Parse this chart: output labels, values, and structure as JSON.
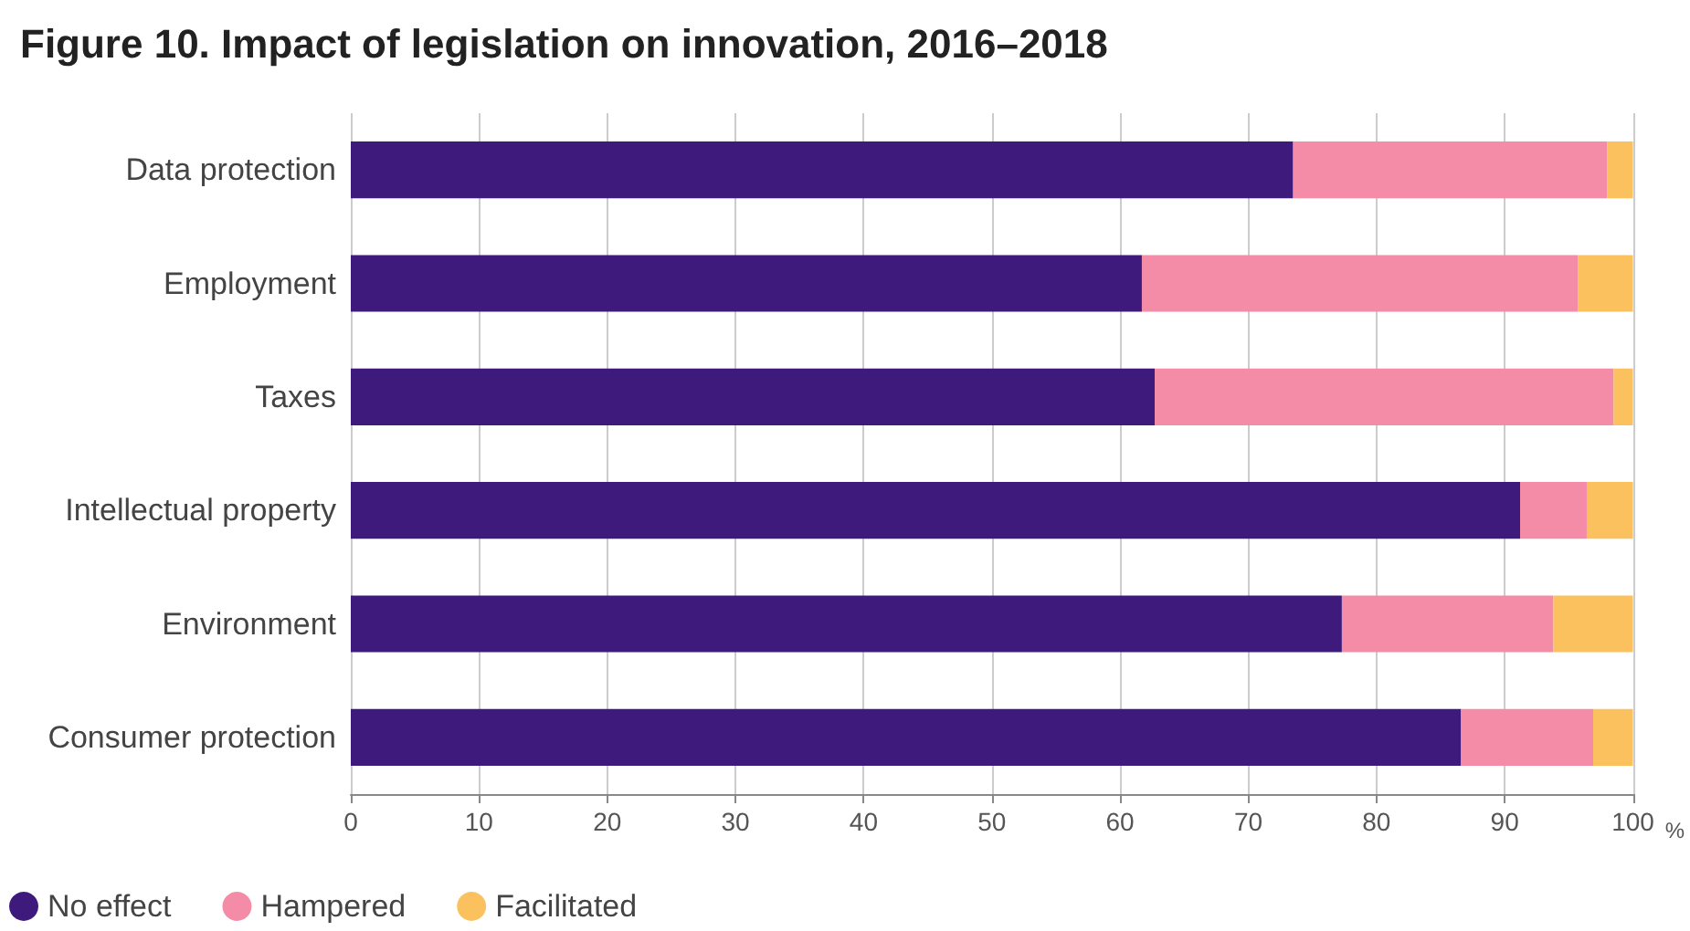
{
  "chart_data": {
    "type": "bar",
    "orientation": "horizontal",
    "stacked": true,
    "title": "Figure 10. Impact of legislation on innovation, 2016–2018",
    "xlabel": "%",
    "categories": [
      "Data protection",
      "Employment",
      "Taxes",
      "Intellectual property",
      "Environment",
      "Consumer protection"
    ],
    "series": [
      {
        "name": "No effect",
        "color": "#3d1a7c",
        "values": [
          73.5,
          61.7,
          62.7,
          91.2,
          77.3,
          86.6
        ]
      },
      {
        "name": "Hampered",
        "color": "#f48ca8",
        "values": [
          24.5,
          34,
          35.8,
          5.2,
          16.5,
          10.3
        ]
      },
      {
        "name": "Facilitated",
        "color": "#fbc15e",
        "values": [
          2,
          4.3,
          1.5,
          3.6,
          6.2,
          3.1
        ]
      }
    ],
    "xlim": [
      0,
      100
    ],
    "xticks": [
      0,
      10,
      20,
      30,
      40,
      50,
      60,
      70,
      80,
      90,
      100
    ],
    "grid": "x",
    "legend": "bottom left"
  }
}
